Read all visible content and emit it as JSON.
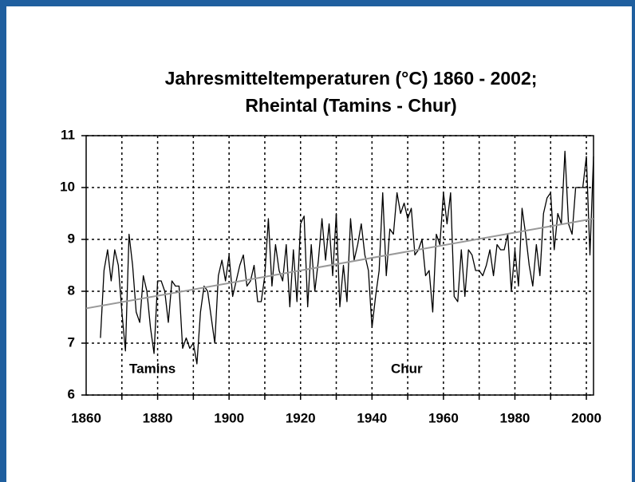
{
  "chart_data": {
    "type": "line",
    "title_lines": [
      "Jahresmitteltemperaturen (°C) 1860 - 2002;",
      "Rheintal (Tamins - Chur)"
    ],
    "annotations": [
      "Tamins",
      "Chur"
    ],
    "x": [
      1864,
      1865,
      1866,
      1867,
      1868,
      1869,
      1870,
      1871,
      1872,
      1873,
      1874,
      1875,
      1876,
      1877,
      1878,
      1879,
      1880,
      1881,
      1882,
      1883,
      1884,
      1885,
      1886,
      1887,
      1888,
      1889,
      1890,
      1891,
      1892,
      1893,
      1894,
      1895,
      1896,
      1897,
      1898,
      1899,
      1900,
      1901,
      1902,
      1903,
      1904,
      1905,
      1906,
      1907,
      1908,
      1909,
      1910,
      1911,
      1912,
      1913,
      1914,
      1915,
      1916,
      1917,
      1918,
      1919,
      1920,
      1921,
      1922,
      1923,
      1924,
      1925,
      1926,
      1927,
      1928,
      1929,
      1930,
      1931,
      1932,
      1933,
      1934,
      1935,
      1936,
      1937,
      1938,
      1939,
      1940,
      1941,
      1942,
      1943,
      1944,
      1945,
      1946,
      1947,
      1948,
      1949,
      1950,
      1951,
      1952,
      1953,
      1954,
      1955,
      1956,
      1957,
      1958,
      1959,
      1960,
      1961,
      1962,
      1963,
      1964,
      1965,
      1966,
      1967,
      1968,
      1969,
      1970,
      1971,
      1972,
      1973,
      1974,
      1975,
      1976,
      1977,
      1978,
      1979,
      1980,
      1981,
      1982,
      1983,
      1984,
      1985,
      1986,
      1987,
      1988,
      1989,
      1990,
      1991,
      1992,
      1993,
      1994,
      1995,
      1996,
      1997,
      1998,
      1999,
      2000,
      2001,
      2002
    ],
    "values": [
      7.1,
      8.4,
      8.8,
      8.2,
      8.8,
      8.5,
      7.6,
      6.85,
      9.1,
      8.5,
      7.6,
      7.4,
      8.3,
      8.0,
      7.3,
      6.8,
      8.2,
      8.2,
      8.0,
      7.4,
      8.2,
      8.1,
      8.1,
      6.9,
      7.1,
      6.9,
      7.0,
      6.6,
      7.6,
      8.1,
      8.0,
      7.5,
      7.0,
      8.3,
      8.6,
      8.2,
      8.7,
      7.9,
      8.2,
      8.5,
      8.7,
      8.1,
      8.2,
      8.5,
      7.8,
      7.8,
      8.3,
      9.4,
      8.1,
      8.9,
      8.4,
      8.2,
      8.9,
      7.7,
      8.8,
      7.8,
      9.3,
      9.45,
      7.7,
      8.9,
      8.0,
      8.6,
      9.4,
      8.6,
      9.3,
      8.3,
      9.5,
      7.7,
      8.5,
      7.8,
      9.4,
      8.6,
      8.9,
      9.3,
      8.7,
      8.4,
      7.3,
      7.9,
      8.4,
      9.9,
      8.3,
      9.2,
      9.1,
      9.9,
      9.5,
      9.7,
      9.4,
      9.6,
      8.7,
      8.8,
      9.0,
      8.3,
      8.4,
      7.6,
      9.1,
      8.9,
      9.9,
      9.3,
      9.9,
      7.9,
      7.8,
      8.8,
      7.9,
      8.8,
      8.7,
      8.4,
      8.4,
      8.3,
      8.5,
      8.8,
      8.3,
      8.9,
      8.8,
      8.8,
      9.1,
      8.0,
      8.8,
      8.1,
      9.6,
      9.1,
      8.5,
      8.1,
      8.9,
      8.3,
      9.5,
      9.8,
      9.9,
      8.8,
      9.5,
      9.3,
      10.7,
      9.3,
      9.1,
      10.0,
      10.0,
      10.0,
      10.6,
      8.7,
      10.6
    ],
    "color": "#000000",
    "trend": {
      "x": [
        1860,
        2002
      ],
      "values": [
        7.67,
        9.4
      ],
      "color": "#999999"
    },
    "xlim": [
      1860,
      2002
    ],
    "xticks": [
      1860,
      1880,
      1900,
      1920,
      1940,
      1960,
      1980,
      2000
    ],
    "xgrid": [
      1870,
      1880,
      1890,
      1900,
      1910,
      1920,
      1930,
      1940,
      1950,
      1960,
      1970,
      1980,
      1990,
      2000
    ],
    "ylim": [
      6,
      11
    ],
    "yticks": [
      6,
      7,
      8,
      9,
      10,
      11
    ],
    "grid": true
  }
}
